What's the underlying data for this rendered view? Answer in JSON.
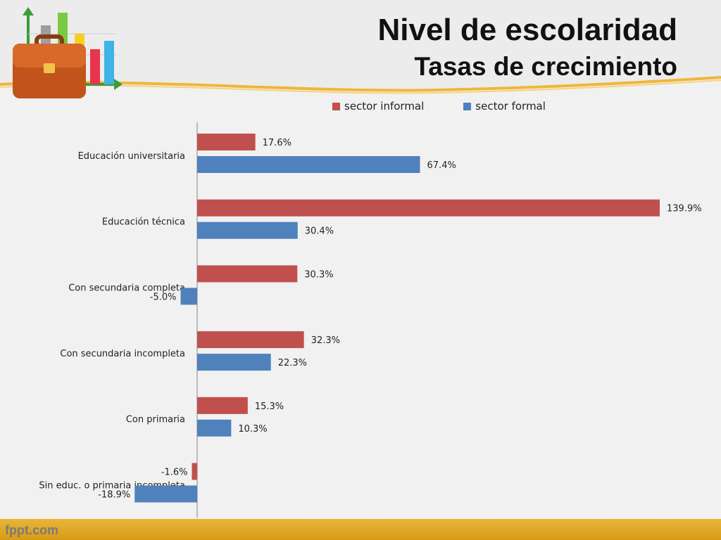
{
  "header": {
    "title": "Nivel de escolaridad",
    "subtitle": "Tasas de crecimiento"
  },
  "footer": {
    "brand": "fppt.com"
  },
  "legend": [
    {
      "label": "sector informal",
      "color": "#c0504d"
    },
    {
      "label": "sector formal",
      "color": "#4f81bd"
    }
  ],
  "chart_data": {
    "type": "bar",
    "orientation": "horizontal",
    "categories": [
      "Educación universitaria",
      "Educación técnica",
      "Con secundaria completa",
      "Con secundaria incompleta",
      "Con primaria",
      "Sin educ. o primaria incompleta"
    ],
    "series": [
      {
        "name": "sector informal",
        "color": "#c0504d",
        "values": [
          17.6,
          139.9,
          30.3,
          32.3,
          15.3,
          -1.6
        ],
        "labels": [
          "17.6%",
          "139.9%",
          "30.3%",
          "32.3%",
          "15.3%",
          "-1.6%"
        ]
      },
      {
        "name": "sector formal",
        "color": "#4f81bd",
        "values": [
          67.4,
          30.4,
          -5.0,
          22.3,
          10.3,
          -18.9
        ],
        "labels": [
          "67.4%",
          "30.4%",
          "-5.0%",
          "22.3%",
          "10.3%",
          "-18.9%"
        ]
      }
    ],
    "xlim": [
      -20,
      140
    ],
    "legend_position": "top",
    "grid": false
  }
}
